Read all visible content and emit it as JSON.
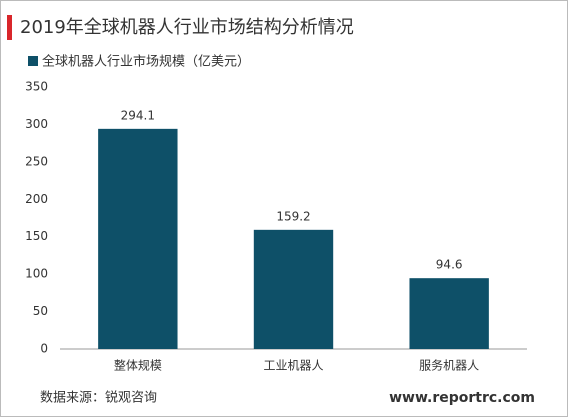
{
  "chart_data": {
    "type": "bar",
    "title": "2019年全球机器人行业市场结构分析情况",
    "legend": "全球机器人行业市场规模（亿美元）",
    "categories": [
      "整体规模",
      "工业机器人",
      "服务机器人"
    ],
    "values": [
      294.1,
      159.2,
      94.6
    ],
    "color": "#0e5068",
    "ylim": [
      0,
      350
    ],
    "yticks": [
      0,
      50,
      100,
      150,
      200,
      250,
      300,
      350
    ],
    "grid": false,
    "source": "数据来源：锐观咨询",
    "watermark": "www.reportrc.com"
  }
}
